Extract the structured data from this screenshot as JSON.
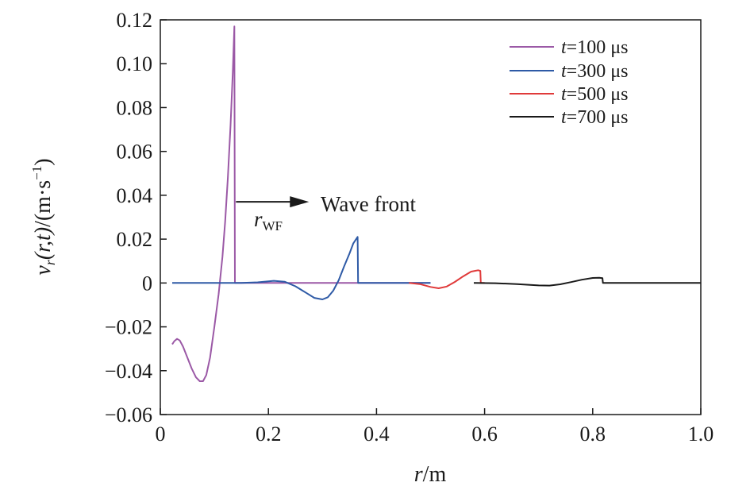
{
  "chart_data": {
    "type": "line",
    "xlabel": {
      "main": "r",
      "sep": "/",
      "unit": "m"
    },
    "ylabel": {
      "v": "v",
      "sub": "r",
      "args": "(r,t)",
      "sep": "/",
      "unit": "(m·s",
      "sup": "−1",
      "close": ")"
    },
    "xlim": [
      0,
      1.0
    ],
    "ylim": [
      -0.06,
      0.12
    ],
    "x_ticks": [
      0,
      0.2,
      0.4,
      0.6,
      0.8,
      1.0
    ],
    "x_tick_labels": [
      "0",
      "0.2",
      "0.4",
      "0.6",
      "0.8",
      "1.0"
    ],
    "y_ticks": [
      -0.06,
      -0.04,
      -0.02,
      0,
      0.02,
      0.04,
      0.06,
      0.08,
      0.1,
      0.12
    ],
    "y_tick_labels": [
      "−0.06",
      "−0.04",
      "−0.02",
      "0",
      "0.02",
      "0.04",
      "0.06",
      "0.08",
      "0.10",
      "0.12"
    ],
    "grid": false,
    "legend_position": "top-right",
    "series": [
      {
        "name": {
          "var": "t",
          "rest": "=100 μs"
        },
        "color": "#9b59a6",
        "points": [
          [
            0.022,
            -0.028
          ],
          [
            0.026,
            -0.0265
          ],
          [
            0.031,
            -0.0255
          ],
          [
            0.036,
            -0.0262
          ],
          [
            0.042,
            -0.029
          ],
          [
            0.05,
            -0.034
          ],
          [
            0.058,
            -0.039
          ],
          [
            0.066,
            -0.043
          ],
          [
            0.073,
            -0.0448
          ],
          [
            0.079,
            -0.0448
          ],
          [
            0.085,
            -0.042
          ],
          [
            0.092,
            -0.034
          ],
          [
            0.1,
            -0.02
          ],
          [
            0.108,
            -0.005
          ],
          [
            0.115,
            0.012
          ],
          [
            0.12,
            0.028
          ],
          [
            0.125,
            0.048
          ],
          [
            0.13,
            0.072
          ],
          [
            0.134,
            0.096
          ],
          [
            0.137,
            0.117
          ],
          [
            0.138,
            0.0
          ],
          [
            0.2,
            0.0
          ],
          [
            0.3,
            0.0
          ],
          [
            0.4,
            0.0
          ],
          [
            0.5,
            0.0
          ]
        ]
      },
      {
        "name": {
          "var": "t",
          "rest": "=300 μs"
        },
        "color": "#2e5aa6",
        "points": [
          [
            0.022,
            0.0
          ],
          [
            0.15,
            0.0
          ],
          [
            0.18,
            0.0003
          ],
          [
            0.21,
            0.001
          ],
          [
            0.23,
            0.0006
          ],
          [
            0.25,
            -0.0015
          ],
          [
            0.27,
            -0.0045
          ],
          [
            0.285,
            -0.0068
          ],
          [
            0.3,
            -0.0075
          ],
          [
            0.31,
            -0.0065
          ],
          [
            0.32,
            -0.0035
          ],
          [
            0.33,
            0.0012
          ],
          [
            0.34,
            0.0075
          ],
          [
            0.35,
            0.0135
          ],
          [
            0.357,
            0.018
          ],
          [
            0.365,
            0.021
          ],
          [
            0.366,
            0.0
          ],
          [
            0.5,
            0.0
          ]
        ]
      },
      {
        "name": {
          "var": "t",
          "rest": "=500 μs"
        },
        "color": "#e03a3a",
        "points": [
          [
            0.46,
            0.0
          ],
          [
            0.48,
            -0.0005
          ],
          [
            0.5,
            -0.0018
          ],
          [
            0.515,
            -0.0024
          ],
          [
            0.53,
            -0.0016
          ],
          [
            0.545,
            0.0005
          ],
          [
            0.56,
            0.003
          ],
          [
            0.575,
            0.0052
          ],
          [
            0.588,
            0.0058
          ],
          [
            0.592,
            0.0055
          ],
          [
            0.593,
            0.0
          ],
          [
            0.6,
            0.0
          ]
        ]
      },
      {
        "name": {
          "var": "t",
          "rest": "=700 μs"
        },
        "color": "#1a1a1a",
        "points": [
          [
            0.58,
            0.0
          ],
          [
            0.62,
            -0.0001
          ],
          [
            0.66,
            -0.0005
          ],
          [
            0.7,
            -0.0011
          ],
          [
            0.72,
            -0.0012
          ],
          [
            0.74,
            -0.0006
          ],
          [
            0.76,
            0.0004
          ],
          [
            0.78,
            0.0015
          ],
          [
            0.8,
            0.0023
          ],
          [
            0.812,
            0.0024
          ],
          [
            0.818,
            0.0022
          ],
          [
            0.819,
            0.0
          ],
          [
            0.9,
            0.0
          ],
          [
            1.0,
            0.0
          ]
        ]
      }
    ],
    "annotation": {
      "text": "Wave front",
      "label_main": "r",
      "label_sub": "WF",
      "arrow_from": [
        0.14,
        0.037
      ],
      "arrow_to": [
        0.275,
        0.037
      ]
    }
  }
}
